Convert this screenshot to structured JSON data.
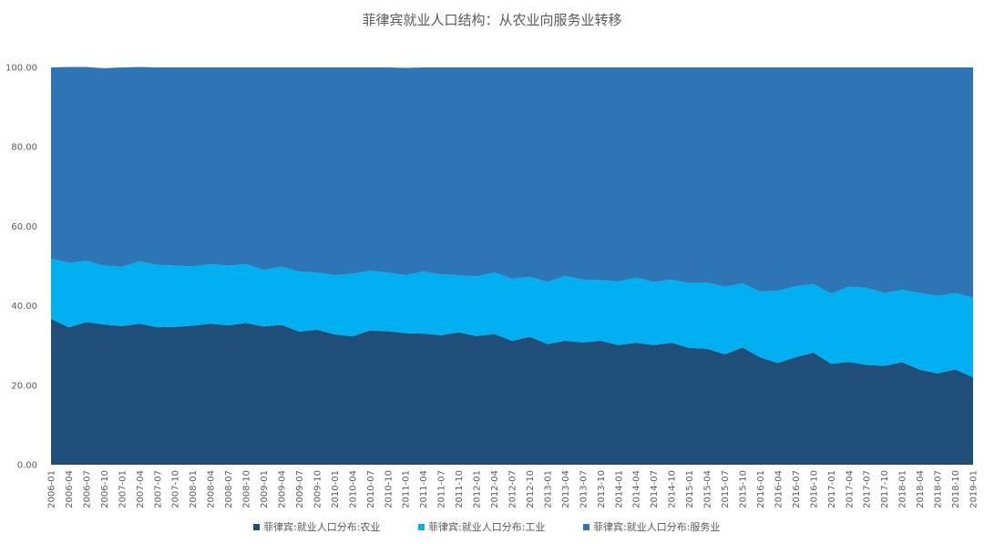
{
  "chart_data": {
    "type": "area",
    "stacked": true,
    "title": "菲律宾就业人口结构：从农业向服务业转移",
    "xlabel": "",
    "ylabel": "",
    "ylim": [
      0,
      100
    ],
    "yticks": [
      "0.00",
      "20.00",
      "40.00",
      "60.00",
      "80.00",
      "100.00"
    ],
    "grid": false,
    "legend_position": "bottom",
    "categories": [
      "2006-01",
      "2006-04",
      "2006-07",
      "2006-10",
      "2007-01",
      "2007-04",
      "2007-07",
      "2007-10",
      "2008-01",
      "2008-04",
      "2008-07",
      "2008-10",
      "2009-01",
      "2009-04",
      "2009-07",
      "2009-10",
      "2010-01",
      "2010-04",
      "2010-07",
      "2010-10",
      "2011-01",
      "2011-04",
      "2011-07",
      "2011-10",
      "2012-01",
      "2012-04",
      "2012-07",
      "2012-10",
      "2013-01",
      "2013-04",
      "2013-07",
      "2013-10",
      "2014-01",
      "2014-04",
      "2014-07",
      "2014-10",
      "2015-01",
      "2015-04",
      "2015-07",
      "2015-10",
      "2016-01",
      "2016-04",
      "2016-07",
      "2016-10",
      "2017-01",
      "2017-04",
      "2017-07",
      "2017-10",
      "2018-01",
      "2018-04",
      "2018-07",
      "2018-10",
      "2019-01"
    ],
    "series": [
      {
        "name": "菲律宾:就业人口分布:农业",
        "color": "#1f4e79",
        "values": [
          36.7,
          34.6,
          35.9,
          35.3,
          34.9,
          35.5,
          34.6,
          34.7,
          35.0,
          35.5,
          35.1,
          35.7,
          34.8,
          35.2,
          33.5,
          34.0,
          32.8,
          32.3,
          33.8,
          33.6,
          33.1,
          33.0,
          32.6,
          33.3,
          32.4,
          32.9,
          31.2,
          32.2,
          30.4,
          31.2,
          30.8,
          31.2,
          30.1,
          30.7,
          30.1,
          30.7,
          29.4,
          29.2,
          27.8,
          29.5,
          27.0,
          25.6,
          27.1,
          28.2,
          25.4,
          25.9,
          25.1,
          24.9,
          25.8,
          23.9,
          23.0,
          24.0,
          22.0
        ]
      },
      {
        "name": "菲律宾:就业人口分布:工业",
        "color": "#00b0f0",
        "values": [
          15.2,
          16.2,
          15.4,
          14.8,
          14.9,
          15.7,
          15.7,
          15.4,
          14.9,
          15.0,
          15.0,
          14.8,
          14.2,
          14.7,
          15.1,
          14.4,
          14.9,
          15.8,
          15.0,
          14.8,
          14.6,
          15.6,
          15.3,
          14.4,
          15.0,
          15.5,
          15.6,
          15.1,
          15.6,
          16.3,
          15.8,
          15.3,
          16.0,
          16.4,
          15.9,
          15.9,
          16.3,
          16.6,
          17.0,
          16.1,
          16.6,
          18.2,
          17.8,
          17.3,
          17.7,
          18.9,
          19.4,
          18.3,
          18.2,
          19.3,
          19.5,
          19.2,
          20.1
        ]
      },
      {
        "name": "菲律宾:就业人口分布:服务业",
        "color": "#2e75b6",
        "values": [
          48.1,
          49.3,
          48.8,
          49.7,
          50.2,
          48.9,
          49.7,
          49.9,
          50.1,
          49.5,
          49.9,
          49.5,
          51.0,
          50.1,
          51.4,
          51.6,
          52.3,
          51.9,
          51.2,
          51.6,
          52.2,
          51.4,
          52.1,
          52.3,
          52.6,
          51.6,
          53.2,
          52.7,
          54.0,
          52.5,
          53.4,
          53.5,
          53.9,
          52.9,
          54.0,
          53.4,
          54.3,
          54.2,
          55.2,
          54.4,
          56.4,
          56.2,
          55.1,
          54.5,
          56.9,
          55.2,
          55.5,
          56.8,
          56.0,
          56.8,
          57.5,
          56.8,
          57.9
        ]
      }
    ]
  }
}
